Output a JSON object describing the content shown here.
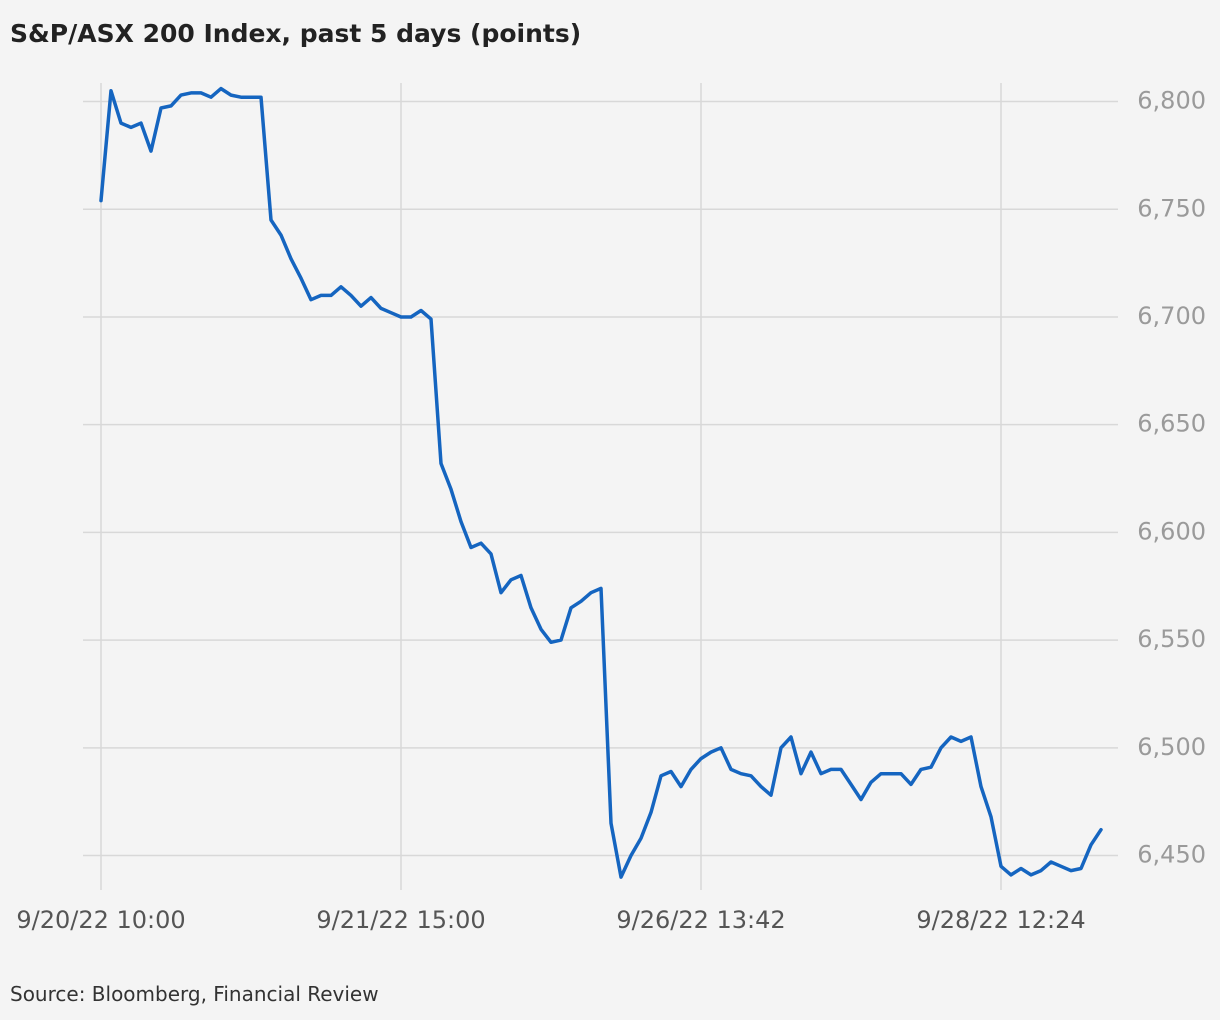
{
  "chart_data": {
    "type": "line",
    "title": "S&P/ASX 200 Index, past 5 days (points)",
    "source": "Source: Bloomberg, Financial Review",
    "categories": [
      "9/20/22 10:00",
      null,
      null,
      null,
      null,
      null,
      null,
      null,
      null,
      null,
      null,
      null,
      null,
      null,
      null,
      null,
      null,
      null,
      null,
      null,
      null,
      null,
      null,
      null,
      null,
      null,
      null,
      null,
      null,
      null,
      "9/21/22 15:00",
      null,
      null,
      null,
      null,
      null,
      null,
      null,
      null,
      null,
      null,
      null,
      null,
      null,
      null,
      null,
      null,
      null,
      null,
      null,
      null,
      null,
      null,
      null,
      null,
      null,
      null,
      null,
      null,
      null,
      "9/26/22 13:42",
      null,
      null,
      null,
      null,
      null,
      null,
      null,
      null,
      null,
      null,
      null,
      null,
      null,
      null,
      null,
      null,
      null,
      null,
      null,
      null,
      null,
      null,
      null,
      null,
      null,
      null,
      null,
      null,
      null,
      "9/28/22 12:24",
      null,
      null,
      null,
      null,
      null,
      null,
      null,
      null,
      null,
      null
    ],
    "series": [
      {
        "name": "S&P/ASX 200",
        "color": "#1565c0",
        "values": [
          6754,
          6805,
          6790,
          6788,
          6790,
          6777,
          6797,
          6798,
          6803,
          6804,
          6804,
          6802,
          6806,
          6803,
          6802,
          6802,
          6802,
          6745,
          6738,
          6727,
          6718,
          6708,
          6710,
          6710,
          6714,
          6710,
          6705,
          6709,
          6704,
          6702,
          6700,
          6700,
          6703,
          6699,
          6632,
          6620,
          6605,
          6593,
          6595,
          6590,
          6572,
          6578,
          6580,
          6565,
          6555,
          6549,
          6550,
          6565,
          6568,
          6572,
          6574,
          6465,
          6440,
          6450,
          6458,
          6470,
          6487,
          6489,
          6482,
          6490,
          6495,
          6498,
          6500,
          6490,
          6488,
          6487,
          6482,
          6478,
          6500,
          6505,
          6488,
          6498,
          6488,
          6490,
          6490,
          6483,
          6476,
          6484,
          6488,
          6488,
          6488,
          6483,
          6490,
          6491,
          6500,
          6505,
          6503,
          6505,
          6482,
          6468,
          6445,
          6441,
          6444,
          6441,
          6443,
          6447,
          6445,
          6443,
          6444,
          6455,
          6462
        ]
      }
    ],
    "ylim": [
      6434,
      6810
    ],
    "yticks": [
      {
        "value": 6450,
        "label": "6,450"
      },
      {
        "value": 6500,
        "label": "6,500"
      },
      {
        "value": 6550,
        "label": "6,550"
      },
      {
        "value": 6600,
        "label": "6,600"
      },
      {
        "value": 6650,
        "label": "6,650"
      },
      {
        "value": 6700,
        "label": "6,700"
      },
      {
        "value": 6750,
        "label": "6,750"
      },
      {
        "value": 6800,
        "label": "6,800"
      }
    ],
    "grid": true
  }
}
